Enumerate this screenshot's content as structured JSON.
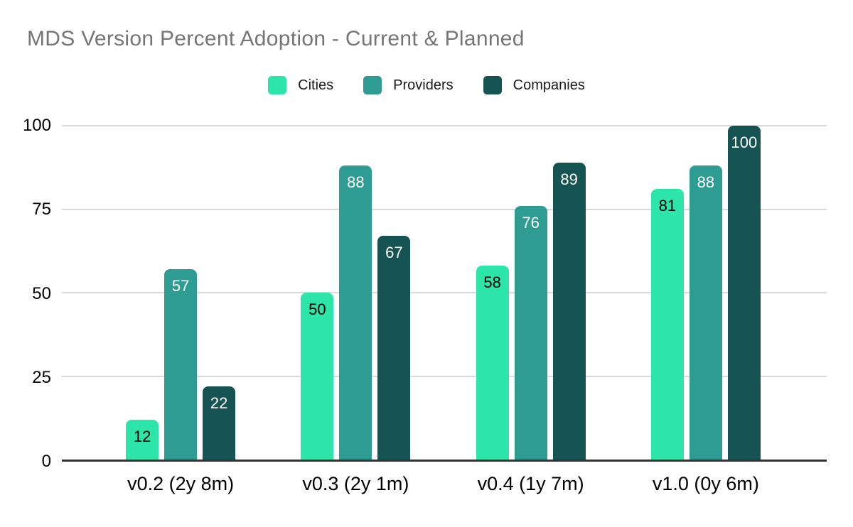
{
  "chart": {
    "background_color": "#ffffff",
    "title_color": "#757575",
    "axis_line_color": "#333333",
    "gridline_color": "#d9d9d9",
    "tick_label_color": "#000000",
    "legend_text_color": "#1a1a1a"
  },
  "chart_data": {
    "type": "bar",
    "title": "MDS Version Percent Adoption - Current & Planned",
    "categories": [
      "v0.2 (2y 8m)",
      "v0.3 (2y 1m)",
      "v0.4 (1y 7m)",
      "v1.0 (0y 6m)"
    ],
    "series": [
      {
        "name": "Cities",
        "color": "#2ee5a9",
        "label_color": "#000000",
        "values": [
          12,
          50,
          58,
          81
        ]
      },
      {
        "name": "Providers",
        "color": "#2e9c93",
        "label_color": "#ffffff",
        "values": [
          57,
          88,
          76,
          88
        ]
      },
      {
        "name": "Companies",
        "color": "#155452",
        "label_color": "#ffffff",
        "values": [
          22,
          67,
          89,
          100
        ]
      }
    ],
    "xlabel": "",
    "ylabel": "",
    "ylim": [
      0,
      100
    ],
    "yticks": [
      0,
      25,
      50,
      75,
      100
    ],
    "grid": true,
    "legend_position": "top",
    "bar_value_labels": true
  }
}
